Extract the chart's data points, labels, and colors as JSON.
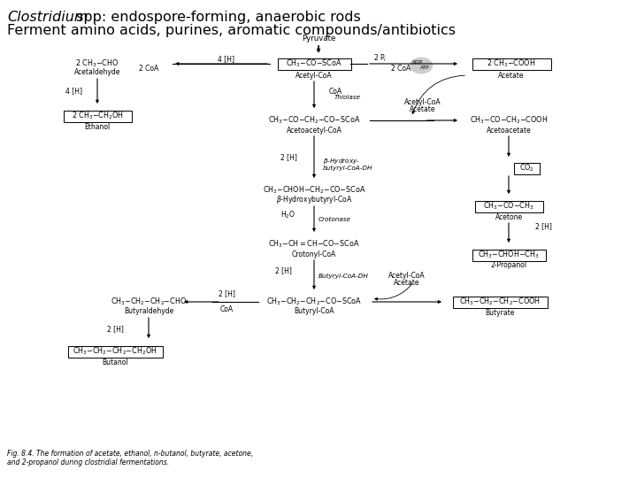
{
  "title_line1_italic": "Clostridium",
  "title_line1_rest": " spp: endospore-forming, anaerobic rods",
  "title_line2": "Ferment amino acids, purines, aromatic compounds/antibiotics",
  "fig_caption": "Fig. 8.4. The formation of acetate, ethanol, n-butanol, butyrate, acetone,\nand 2-propanol during clostridial fermentations.",
  "bg_color": "#ffffff",
  "text_color": "#000000"
}
